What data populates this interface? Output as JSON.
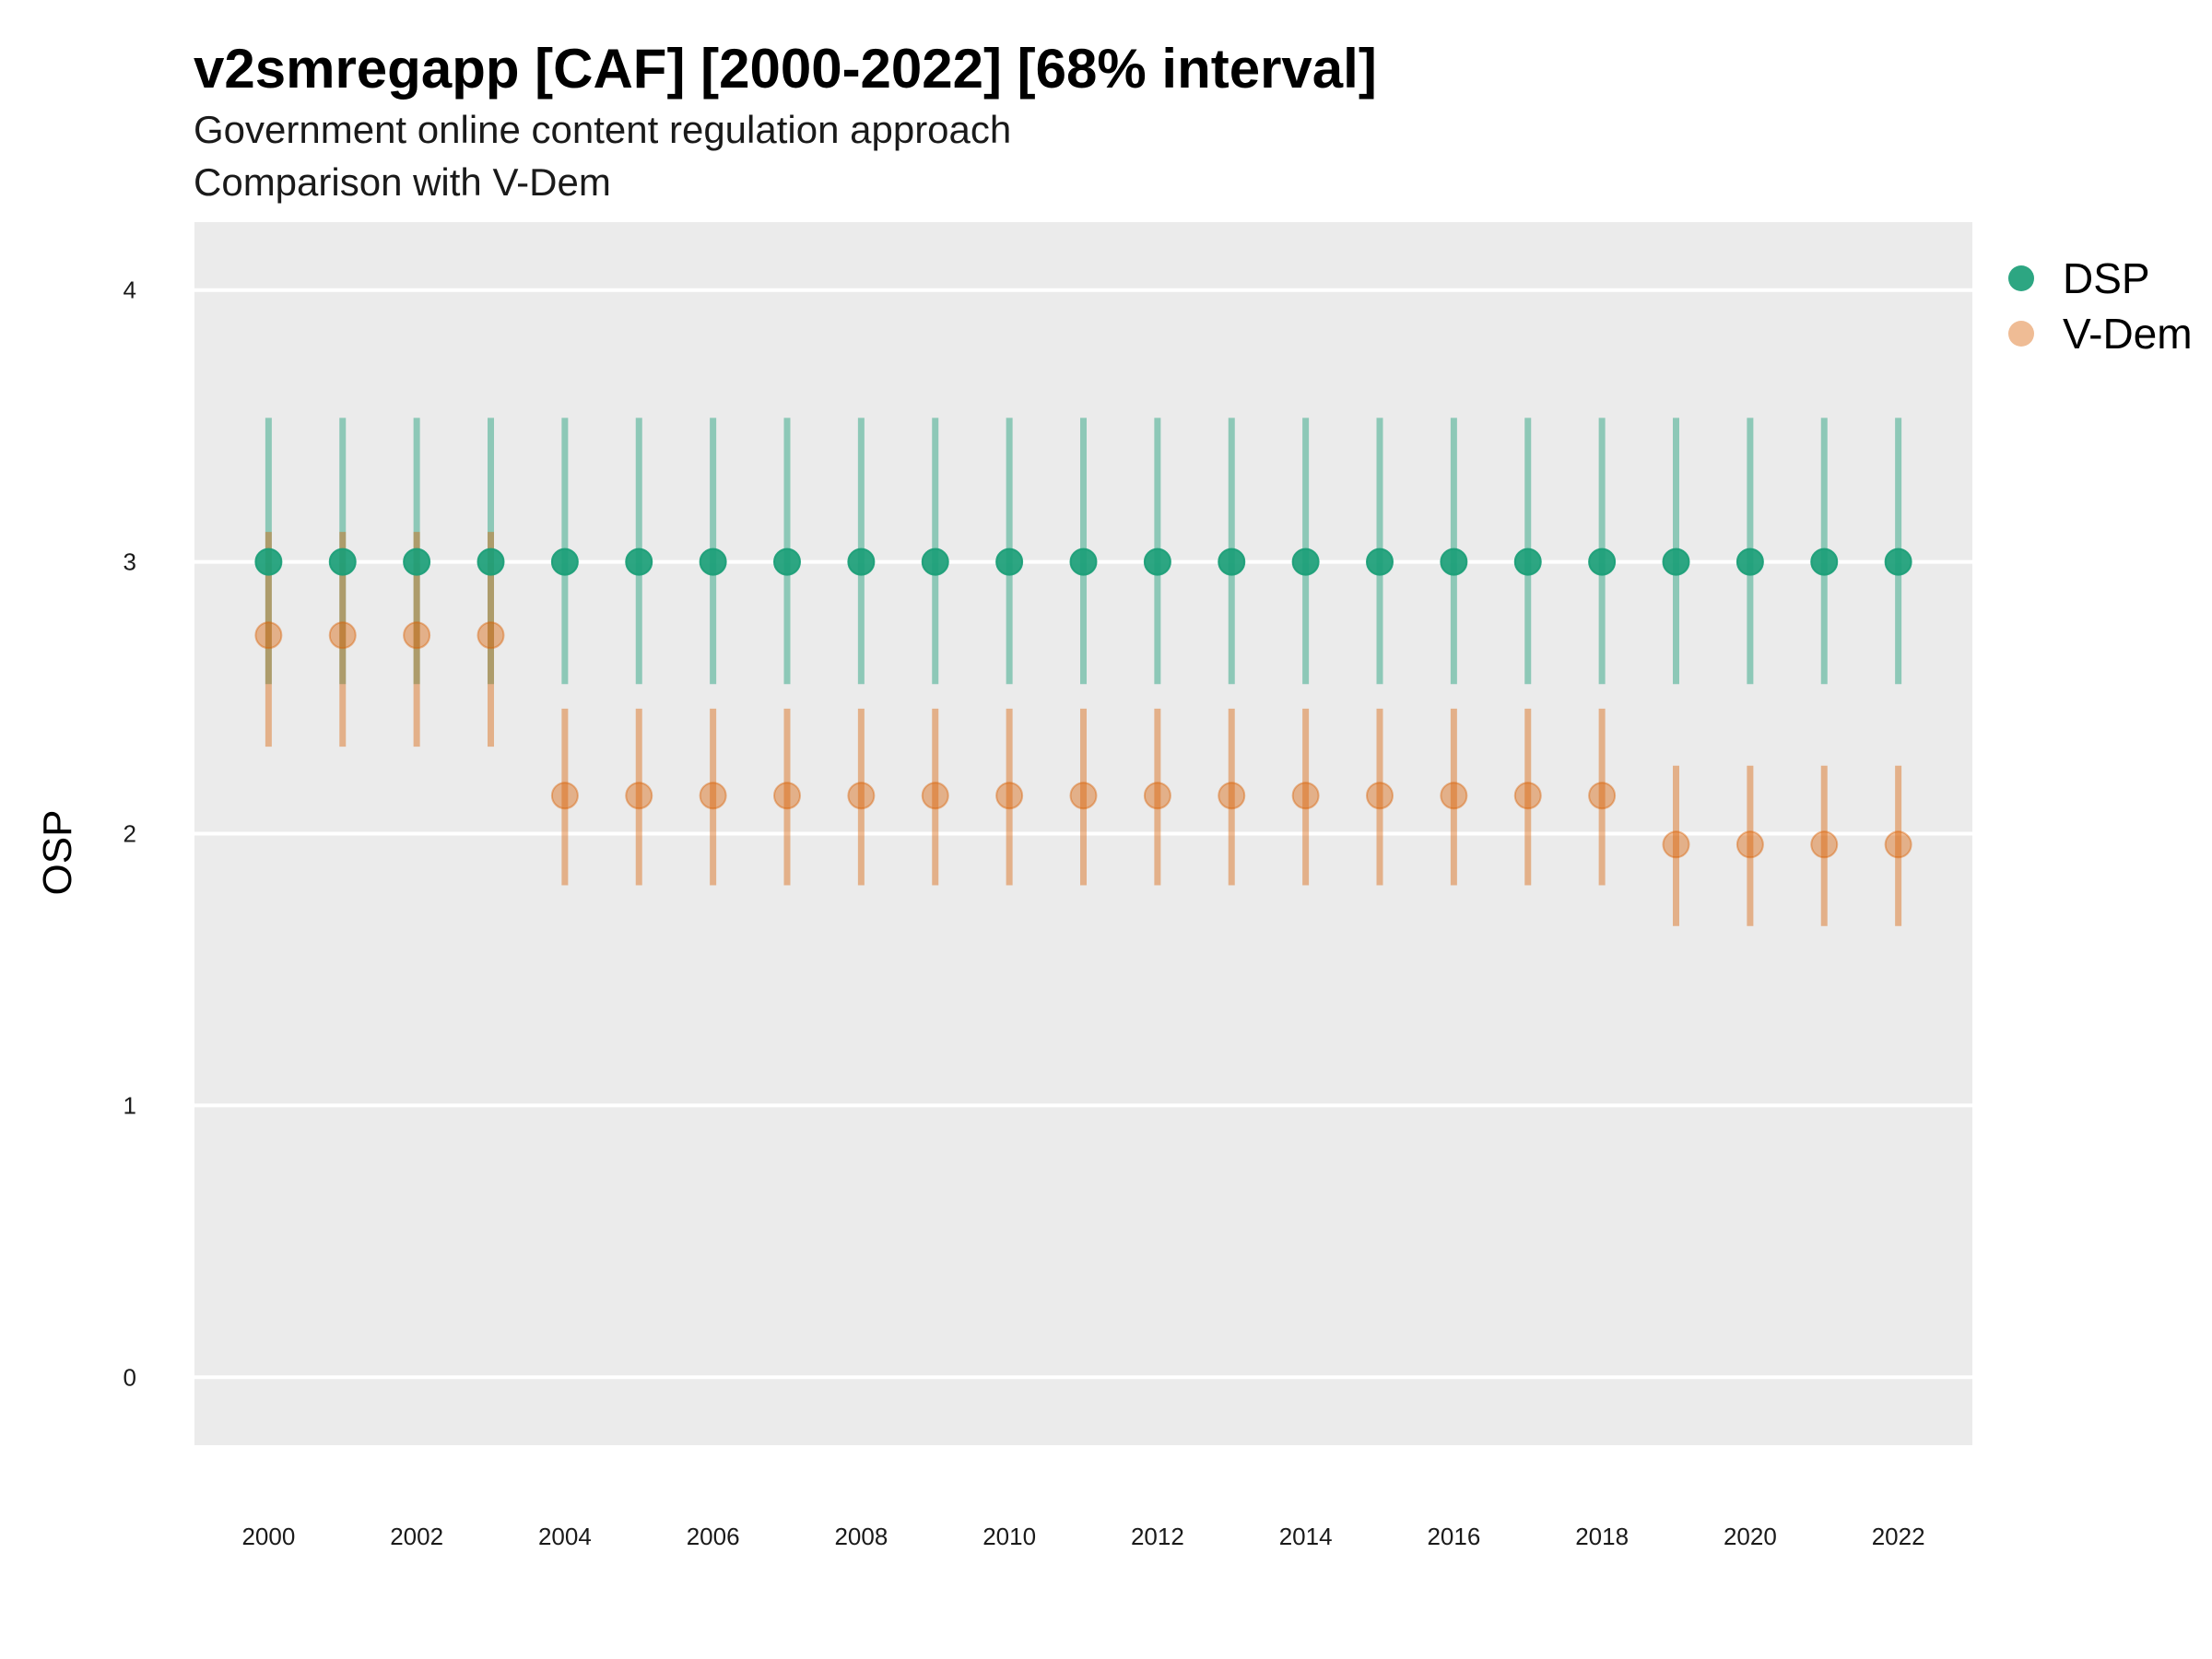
{
  "chart_data": {
    "type": "scatter",
    "title": "v2smregapp [CAF] [2000-2022] [68% interval]",
    "subtitle": "Government online content regulation approach",
    "caption_line": "Comparison with V-Dem",
    "xlabel": "",
    "ylabel": "OSP",
    "ylim": [
      -0.25,
      4.25
    ],
    "yticks": [
      0,
      1,
      2,
      3,
      4
    ],
    "xlim": [
      1999,
      2023
    ],
    "xticks": [
      2000,
      2002,
      2004,
      2006,
      2008,
      2010,
      2012,
      2014,
      2016,
      2018,
      2020,
      2022
    ],
    "grid": true,
    "legend_position": "right-top",
    "x": [
      2000,
      2001,
      2002,
      2003,
      2004,
      2005,
      2006,
      2007,
      2008,
      2009,
      2010,
      2011,
      2012,
      2013,
      2014,
      2015,
      2016,
      2017,
      2018,
      2019,
      2020,
      2021,
      2022
    ],
    "series": [
      {
        "name": "DSP",
        "color": "#1b9e77",
        "values": [
          3,
          3,
          3,
          3,
          3,
          3,
          3,
          3,
          3,
          3,
          3,
          3,
          3,
          3,
          3,
          3,
          3,
          3,
          3,
          3,
          3,
          3,
          3
        ],
        "lower": [
          2.55,
          2.55,
          2.55,
          2.55,
          2.55,
          2.55,
          2.55,
          2.55,
          2.55,
          2.55,
          2.55,
          2.55,
          2.55,
          2.55,
          2.55,
          2.55,
          2.55,
          2.55,
          2.55,
          2.55,
          2.55,
          2.55,
          2.55
        ],
        "upper": [
          3.53,
          3.53,
          3.53,
          3.53,
          3.53,
          3.53,
          3.53,
          3.53,
          3.53,
          3.53,
          3.53,
          3.53,
          3.53,
          3.53,
          3.53,
          3.53,
          3.53,
          3.53,
          3.53,
          3.53,
          3.53,
          3.53,
          3.53
        ]
      },
      {
        "name": "V-Dem",
        "color": "#d95f02",
        "values": [
          2.73,
          2.73,
          2.73,
          2.73,
          2.14,
          2.14,
          2.14,
          2.14,
          2.14,
          2.14,
          2.14,
          2.14,
          2.14,
          2.14,
          2.14,
          2.14,
          2.14,
          2.14,
          2.14,
          1.96,
          1.96,
          1.96,
          1.96
        ],
        "lower": [
          2.32,
          2.32,
          2.32,
          2.32,
          1.81,
          1.81,
          1.81,
          1.81,
          1.81,
          1.81,
          1.81,
          1.81,
          1.81,
          1.81,
          1.81,
          1.81,
          1.81,
          1.81,
          1.81,
          1.66,
          1.66,
          1.66,
          1.66
        ],
        "upper": [
          3.11,
          3.11,
          3.11,
          3.11,
          2.46,
          2.46,
          2.46,
          2.46,
          2.46,
          2.46,
          2.46,
          2.46,
          2.46,
          2.46,
          2.46,
          2.46,
          2.46,
          2.46,
          2.46,
          2.25,
          2.25,
          2.25,
          2.25
        ]
      }
    ]
  }
}
